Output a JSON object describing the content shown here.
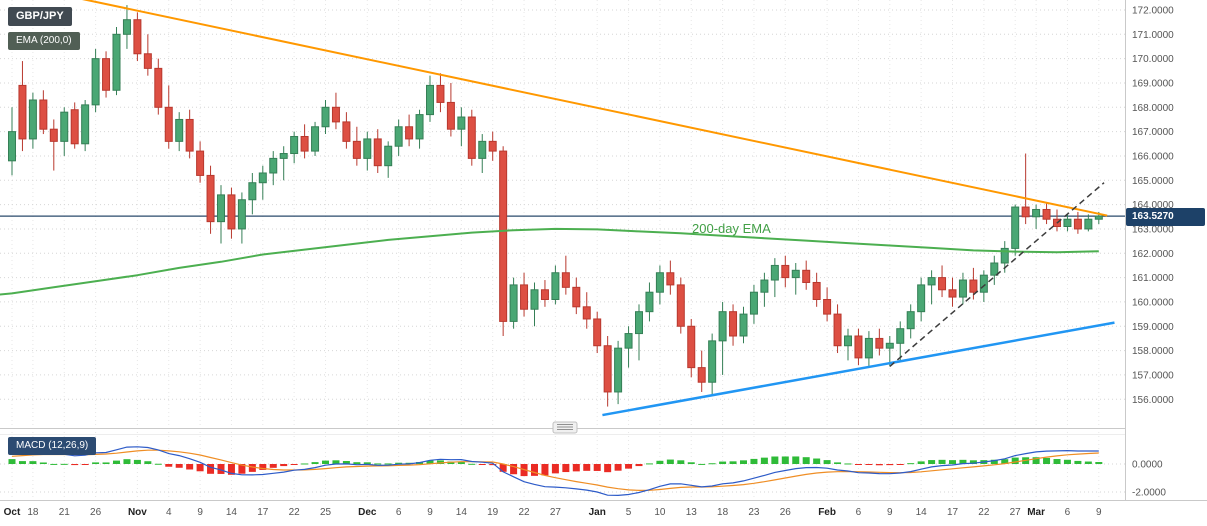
{
  "header": {
    "symbol": "GBP/JPY",
    "ema_badge": "EMA (200,0)",
    "macd_badge": "MACD (12,26,9)"
  },
  "annotations": {
    "ema_label_text": "200-day EMA"
  },
  "price_badge": "163.5270",
  "chart_data": {
    "type": "candlestick",
    "symbol": "GBP/JPY",
    "interval": "daily",
    "panes": [
      "price",
      "macd"
    ],
    "price_axis": {
      "ticks": [
        172,
        171,
        170,
        169,
        168,
        167,
        166,
        165,
        164,
        163,
        162,
        161,
        160,
        159,
        158,
        157,
        156
      ],
      "decimals": 4
    },
    "macd_axis": {
      "ticks": [
        0,
        -2
      ],
      "decimals": 4
    },
    "time_ticks": [
      {
        "i": 0,
        "label": "Oct",
        "month": true
      },
      {
        "i": 2,
        "label": "18"
      },
      {
        "i": 5,
        "label": "21"
      },
      {
        "i": 8,
        "label": "26"
      },
      {
        "i": 12,
        "label": "Nov",
        "month": true
      },
      {
        "i": 15,
        "label": "4"
      },
      {
        "i": 18,
        "label": "9"
      },
      {
        "i": 21,
        "label": "14"
      },
      {
        "i": 24,
        "label": "17"
      },
      {
        "i": 27,
        "label": "22"
      },
      {
        "i": 30,
        "label": "25"
      },
      {
        "i": 34,
        "label": "Dec",
        "month": true
      },
      {
        "i": 37,
        "label": "6"
      },
      {
        "i": 40,
        "label": "9"
      },
      {
        "i": 43,
        "label": "14"
      },
      {
        "i": 46,
        "label": "19"
      },
      {
        "i": 49,
        "label": "22"
      },
      {
        "i": 52,
        "label": "27"
      },
      {
        "i": 56,
        "label": "Jan",
        "month": true
      },
      {
        "i": 59,
        "label": "5"
      },
      {
        "i": 62,
        "label": "10"
      },
      {
        "i": 65,
        "label": "13"
      },
      {
        "i": 68,
        "label": "18"
      },
      {
        "i": 71,
        "label": "23"
      },
      {
        "i": 74,
        "label": "26"
      },
      {
        "i": 78,
        "label": "Feb",
        "month": true
      },
      {
        "i": 81,
        "label": "6"
      },
      {
        "i": 84,
        "label": "9"
      },
      {
        "i": 87,
        "label": "14"
      },
      {
        "i": 90,
        "label": "17"
      },
      {
        "i": 93,
        "label": "22"
      },
      {
        "i": 96,
        "label": "27"
      },
      {
        "i": 98,
        "label": "Mar",
        "month": true
      },
      {
        "i": 101,
        "label": "6"
      },
      {
        "i": 104,
        "label": "9"
      }
    ],
    "candles_ohlc": [
      [
        165.8,
        168,
        165.2,
        167
      ],
      [
        168.9,
        169.9,
        166.2,
        166.7
      ],
      [
        166.7,
        168.6,
        166.3,
        168.3
      ],
      [
        168.3,
        168.7,
        166.9,
        167.1
      ],
      [
        167.1,
        167.5,
        165.4,
        166.6
      ],
      [
        166.6,
        168,
        166,
        167.8
      ],
      [
        167.9,
        168.2,
        166.3,
        166.5
      ],
      [
        166.5,
        168.3,
        166.2,
        168.1
      ],
      [
        168.1,
        170.4,
        167.8,
        170
      ],
      [
        170,
        170.3,
        168.4,
        168.7
      ],
      [
        168.7,
        171.3,
        168.5,
        171
      ],
      [
        171,
        172.2,
        170.4,
        171.6
      ],
      [
        171.6,
        171.9,
        169.9,
        170.2
      ],
      [
        170.2,
        171,
        169.3,
        169.6
      ],
      [
        169.6,
        170,
        167.7,
        168
      ],
      [
        168,
        168.9,
        166.3,
        166.6
      ],
      [
        166.6,
        167.8,
        166.2,
        167.5
      ],
      [
        167.5,
        167.9,
        165.9,
        166.2
      ],
      [
        166.2,
        166.6,
        164.9,
        165.2
      ],
      [
        165.2,
        165.6,
        162.8,
        163.3
      ],
      [
        163.3,
        164.8,
        162.4,
        164.4
      ],
      [
        164.4,
        164.7,
        162.6,
        163
      ],
      [
        163,
        164.5,
        162.4,
        164.2
      ],
      [
        164.2,
        165.3,
        163.6,
        164.9
      ],
      [
        164.9,
        165.6,
        164.2,
        165.3
      ],
      [
        165.3,
        166.2,
        164.8,
        165.9
      ],
      [
        165.9,
        166.4,
        165,
        166.1
      ],
      [
        166.1,
        167,
        165.7,
        166.8
      ],
      [
        166.8,
        167.3,
        165.9,
        166.2
      ],
      [
        166.2,
        167.4,
        166,
        167.2
      ],
      [
        167.2,
        168.3,
        166.9,
        168
      ],
      [
        168,
        168.6,
        167.1,
        167.4
      ],
      [
        167.4,
        167.8,
        166.3,
        166.6
      ],
      [
        166.6,
        167.2,
        165.6,
        165.9
      ],
      [
        165.9,
        167,
        165.4,
        166.7
      ],
      [
        166.7,
        167.1,
        165.3,
        165.6
      ],
      [
        165.6,
        166.6,
        165.1,
        166.4
      ],
      [
        166.4,
        167.5,
        166,
        167.2
      ],
      [
        167.2,
        167.7,
        166.4,
        166.7
      ],
      [
        166.7,
        167.9,
        166.3,
        167.7
      ],
      [
        167.7,
        169.3,
        167.4,
        168.9
      ],
      [
        168.9,
        169.4,
        167.8,
        168.2
      ],
      [
        168.2,
        169,
        166.8,
        167.1
      ],
      [
        167.1,
        168,
        166.4,
        167.6
      ],
      [
        167.6,
        167.9,
        165.6,
        165.9
      ],
      [
        165.9,
        166.9,
        165.3,
        166.6
      ],
      [
        166.6,
        167,
        165.8,
        166.2
      ],
      [
        166.2,
        166.4,
        158.6,
        159.2
      ],
      [
        159.2,
        161,
        158.9,
        160.7
      ],
      [
        160.7,
        161.2,
        159.4,
        159.7
      ],
      [
        159.7,
        160.8,
        159,
        160.5
      ],
      [
        160.5,
        160.9,
        159.8,
        160.1
      ],
      [
        160.1,
        161.5,
        159.9,
        161.2
      ],
      [
        161.2,
        161.9,
        160.3,
        160.6
      ],
      [
        160.6,
        161,
        159.5,
        159.8
      ],
      [
        159.8,
        160.4,
        158.9,
        159.3
      ],
      [
        159.3,
        159.6,
        157.9,
        158.2
      ],
      [
        158.2,
        158.6,
        155.7,
        156.3
      ],
      [
        156.3,
        158.4,
        155.8,
        158.1
      ],
      [
        158.1,
        159,
        157.3,
        158.7
      ],
      [
        158.7,
        159.9,
        157.6,
        159.6
      ],
      [
        159.6,
        160.8,
        159.2,
        160.4
      ],
      [
        160.4,
        161.5,
        159.9,
        161.2
      ],
      [
        161.2,
        161.7,
        160.3,
        160.7
      ],
      [
        160.7,
        161,
        158.7,
        159
      ],
      [
        159,
        159.3,
        156.9,
        157.3
      ],
      [
        157.3,
        158,
        156.3,
        156.7
      ],
      [
        156.7,
        158.7,
        156.2,
        158.4
      ],
      [
        158.4,
        160,
        157,
        159.6
      ],
      [
        159.6,
        159.9,
        158.2,
        158.6
      ],
      [
        158.6,
        159.8,
        158.3,
        159.5
      ],
      [
        159.5,
        160.7,
        159.1,
        160.4
      ],
      [
        160.4,
        161.2,
        159.8,
        160.9
      ],
      [
        160.9,
        161.8,
        160.2,
        161.5
      ],
      [
        161.5,
        161.9,
        160.6,
        161
      ],
      [
        161,
        161.6,
        160.3,
        161.3
      ],
      [
        161.3,
        161.7,
        160.5,
        160.8
      ],
      [
        160.8,
        161.2,
        159.8,
        160.1
      ],
      [
        160.1,
        160.6,
        159.2,
        159.5
      ],
      [
        159.5,
        159.9,
        157.9,
        158.2
      ],
      [
        158.2,
        158.9,
        157.6,
        158.6
      ],
      [
        158.6,
        158.9,
        157.4,
        157.7
      ],
      [
        157.7,
        158.8,
        157.3,
        158.5
      ],
      [
        158.5,
        158.9,
        157.8,
        158.1
      ],
      [
        158.1,
        158.6,
        157.35,
        158.3
      ],
      [
        158.3,
        159.2,
        157.6,
        158.9
      ],
      [
        158.9,
        159.9,
        158.5,
        159.6
      ],
      [
        159.6,
        161,
        159.2,
        160.7
      ],
      [
        160.7,
        161.3,
        159.9,
        161
      ],
      [
        161,
        161.5,
        160.2,
        160.5
      ],
      [
        160.5,
        161,
        159.8,
        160.2
      ],
      [
        160.2,
        161.2,
        159.9,
        160.9
      ],
      [
        160.9,
        161.4,
        160.1,
        160.4
      ],
      [
        160.4,
        161.3,
        160,
        161.1
      ],
      [
        161.1,
        161.9,
        160.7,
        161.6
      ],
      [
        161.6,
        162.5,
        161.2,
        162.2
      ],
      [
        162.2,
        164,
        161.9,
        163.9
      ],
      [
        163.9,
        166.1,
        163.2,
        163.5
      ],
      [
        163.5,
        164,
        163,
        163.8
      ],
      [
        163.8,
        164.1,
        163.2,
        163.4
      ],
      [
        163.4,
        163.8,
        162.9,
        163.1
      ],
      [
        163.1,
        163.6,
        162.9,
        163.4
      ],
      [
        163.4,
        163.7,
        162.8,
        163
      ],
      [
        163,
        163.6,
        162.9,
        163.4
      ],
      [
        163.4,
        163.7,
        163.2,
        163.53
      ]
    ],
    "overlays": {
      "ema200_points": [
        [
          -1.2,
          160.3
        ],
        [
          0,
          160.35
        ],
        [
          4,
          160.6
        ],
        [
          8,
          160.85
        ],
        [
          12,
          161.1
        ],
        [
          16,
          161.4
        ],
        [
          20,
          161.65
        ],
        [
          24,
          161.95
        ],
        [
          28,
          162.15
        ],
        [
          32,
          162.35
        ],
        [
          36,
          162.55
        ],
        [
          40,
          162.7
        ],
        [
          44,
          162.85
        ],
        [
          48,
          162.95
        ],
        [
          52,
          163.0
        ],
        [
          56,
          162.98
        ],
        [
          60,
          162.9
        ],
        [
          64,
          162.82
        ],
        [
          68,
          162.72
        ],
        [
          72,
          162.62
        ],
        [
          76,
          162.52
        ],
        [
          80,
          162.42
        ],
        [
          84,
          162.32
        ],
        [
          88,
          162.22
        ],
        [
          92,
          162.12
        ],
        [
          96,
          162.07
        ],
        [
          100,
          162.04
        ],
        [
          104,
          162.08
        ]
      ],
      "resistance_line": {
        "i1": -1,
        "p1": 173.15,
        "i2": 104.8,
        "p2": 163.55
      },
      "support_line": {
        "i1": 56.5,
        "p1": 155.35,
        "i2": 105.5,
        "p2": 159.15
      },
      "dashed_projection": {
        "i1": 84,
        "p1": 157.35,
        "i2": 104.5,
        "p2": 164.9
      },
      "last_price_line": {
        "price": 163.527,
        "label": "163.5270"
      }
    },
    "macd": {
      "fast": 12,
      "slow": 26,
      "signal": 9,
      "seed_macd": 0.9,
      "seed_signal": 0.55
    },
    "colors": {
      "up": "#4aa774",
      "up_border": "#357f56",
      "down": "#dd4f43",
      "down_border": "#b8382e",
      "hist_up": "#2fbb38",
      "hist_down": "#ea2b24",
      "macd_line": "#2d5bc8",
      "signal_line": "#ef8e25",
      "ema": "#4caf50",
      "resistance": "#ff9800",
      "support": "#2196f3",
      "dashed": "#3c3c3c",
      "last_price": "#2a4a6b",
      "grid": "#d6d6d6",
      "grid_v": "#e7e7e7",
      "axis_text": "#555555",
      "month_text": "#222222",
      "border": "#c9c9c9"
    }
  }
}
